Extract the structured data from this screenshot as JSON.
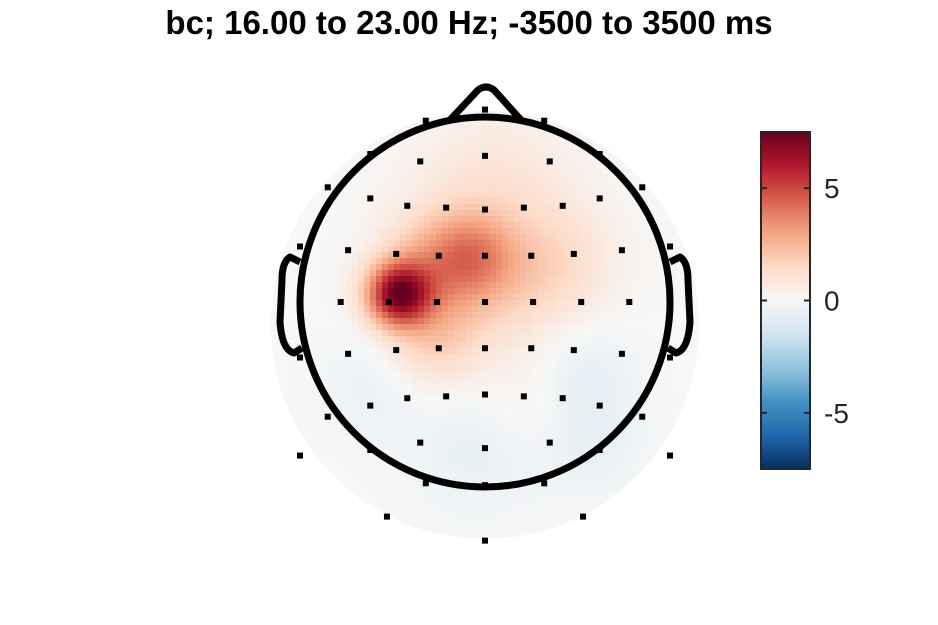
{
  "chart_data": {
    "type": "heatmap",
    "subtype": "eeg-scalp-topography",
    "title": "bc; 16.00 to 23.00 Hz; -3500 to 3500 ms",
    "colormap": "diverging red-white-blue",
    "colors": {
      "high": "#67001f",
      "mid": "#f7f7f7",
      "low": "#053061",
      "outline": "#000000"
    },
    "clim": [
      -7.5,
      7.5
    ],
    "colorbar": {
      "ticks": [
        5,
        0,
        -5
      ],
      "tick_labels": [
        "5",
        "0",
        "-5"
      ]
    },
    "peak": {
      "region": "left-central",
      "value": 7.5
    },
    "sources": [
      {
        "x": -0.47,
        "y": 0.04,
        "amp": 6.4,
        "sigma": 0.12
      },
      {
        "x": -0.26,
        "y": 0.2,
        "amp": 2.4,
        "sigma": 0.2
      },
      {
        "x": -0.05,
        "y": 0.26,
        "amp": 1.8,
        "sigma": 0.16
      },
      {
        "x": -0.28,
        "y": -0.22,
        "amp": 1.6,
        "sigma": 0.18
      },
      {
        "x": 0.1,
        "y": 0.05,
        "amp": 1.2,
        "sigma": 0.25
      },
      {
        "x": 0.05,
        "y": 0.62,
        "amp": 1.0,
        "sigma": 0.3
      },
      {
        "x": 0.42,
        "y": 0.22,
        "amp": 1.0,
        "sigma": 0.22
      },
      {
        "x": 0.3,
        "y": -0.55,
        "amp": 0.6,
        "sigma": 0.2
      },
      {
        "x": -0.05,
        "y": -0.8,
        "amp": -0.6,
        "sigma": 0.25
      },
      {
        "x": 0.5,
        "y": -0.4,
        "amp": -0.8,
        "sigma": 0.2
      },
      {
        "x": -0.6,
        "y": -0.45,
        "amp": -0.5,
        "sigma": 0.2
      },
      {
        "x": 0.55,
        "y": -0.75,
        "amp": -0.6,
        "sigma": 0.2
      }
    ],
    "electrodes": [
      [
        -0.32,
        0.98
      ],
      [
        0.0,
        1.04
      ],
      [
        0.32,
        0.98
      ],
      [
        -0.62,
        0.8
      ],
      [
        -0.35,
        0.76
      ],
      [
        0.0,
        0.79
      ],
      [
        0.35,
        0.76
      ],
      [
        0.62,
        0.8
      ],
      [
        -0.85,
        0.62
      ],
      [
        -0.62,
        0.56
      ],
      [
        -0.42,
        0.52
      ],
      [
        -0.21,
        0.51
      ],
      [
        0.0,
        0.5
      ],
      [
        0.21,
        0.51
      ],
      [
        0.42,
        0.52
      ],
      [
        0.62,
        0.56
      ],
      [
        0.85,
        0.62
      ],
      [
        -1.0,
        0.3
      ],
      [
        -0.74,
        0.28
      ],
      [
        -0.48,
        0.26
      ],
      [
        -0.25,
        0.25
      ],
      [
        0.0,
        0.25
      ],
      [
        0.25,
        0.25
      ],
      [
        0.48,
        0.26
      ],
      [
        0.74,
        0.28
      ],
      [
        1.0,
        0.3
      ],
      [
        -0.78,
        0.0
      ],
      [
        -0.52,
        0.0
      ],
      [
        -0.26,
        0.0
      ],
      [
        0.0,
        0.0
      ],
      [
        0.26,
        0.0
      ],
      [
        0.52,
        0.0
      ],
      [
        0.78,
        0.0
      ],
      [
        -1.0,
        -0.3
      ],
      [
        -0.74,
        -0.28
      ],
      [
        -0.48,
        -0.26
      ],
      [
        -0.25,
        -0.25
      ],
      [
        0.0,
        -0.25
      ],
      [
        0.25,
        -0.25
      ],
      [
        0.48,
        -0.26
      ],
      [
        0.74,
        -0.28
      ],
      [
        1.0,
        -0.3
      ],
      [
        -0.85,
        -0.62
      ],
      [
        -0.62,
        -0.56
      ],
      [
        -0.42,
        -0.52
      ],
      [
        -0.21,
        -0.51
      ],
      [
        0.0,
        -0.5
      ],
      [
        0.21,
        -0.51
      ],
      [
        0.42,
        -0.52
      ],
      [
        0.62,
        -0.56
      ],
      [
        0.85,
        -0.62
      ],
      [
        -0.62,
        -0.8
      ],
      [
        -0.35,
        -0.76
      ],
      [
        0.0,
        -0.79
      ],
      [
        0.35,
        -0.76
      ],
      [
        0.62,
        -0.8
      ],
      [
        -1.0,
        -0.83
      ],
      [
        -0.32,
        -0.98
      ],
      [
        0.0,
        -0.99
      ],
      [
        0.32,
        -0.98
      ],
      [
        1.0,
        -0.83
      ],
      [
        -0.53,
        -1.16
      ],
      [
        0.0,
        -1.29
      ],
      [
        0.53,
        -1.16
      ]
    ]
  }
}
